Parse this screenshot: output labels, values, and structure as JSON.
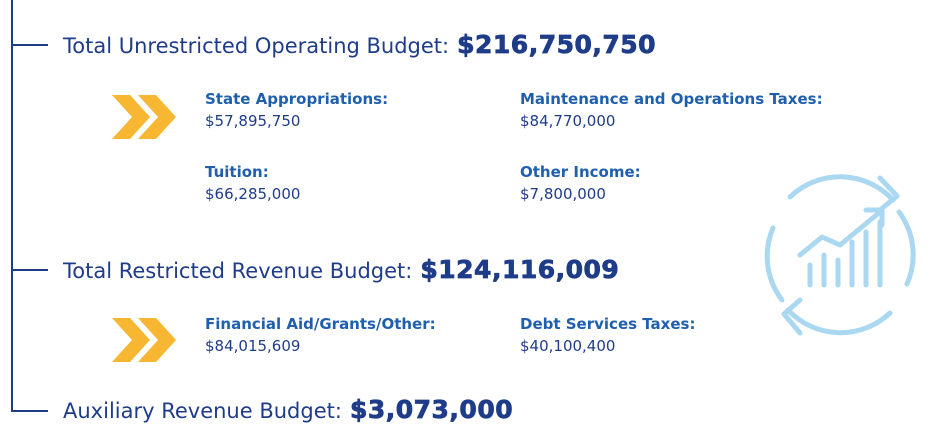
{
  "sections": [
    {
      "label": "Total Unrestricted Operating Budget:",
      "amount": "$216,750,750",
      "items": [
        {
          "label": "State Appropriations:",
          "value": "$57,895,750"
        },
        {
          "label": "Maintenance and Operations Taxes:",
          "value": "$84,770,000"
        },
        {
          "label": "Tuition:",
          "value": "$66,285,000"
        },
        {
          "label": "Other Income:",
          "value": "$7,800,000"
        }
      ]
    },
    {
      "label": "Total Restricted Revenue Budget:",
      "amount": "$124,116,009",
      "items": [
        {
          "label": "Financial Aid/Grants/Other:",
          "value": "$84,015,609"
        },
        {
          "label": "Debt Services Taxes:",
          "value": "$40,100,400"
        }
      ]
    },
    {
      "label": "Auxiliary Revenue Budget:",
      "amount": "$3,073,000",
      "items": []
    }
  ]
}
